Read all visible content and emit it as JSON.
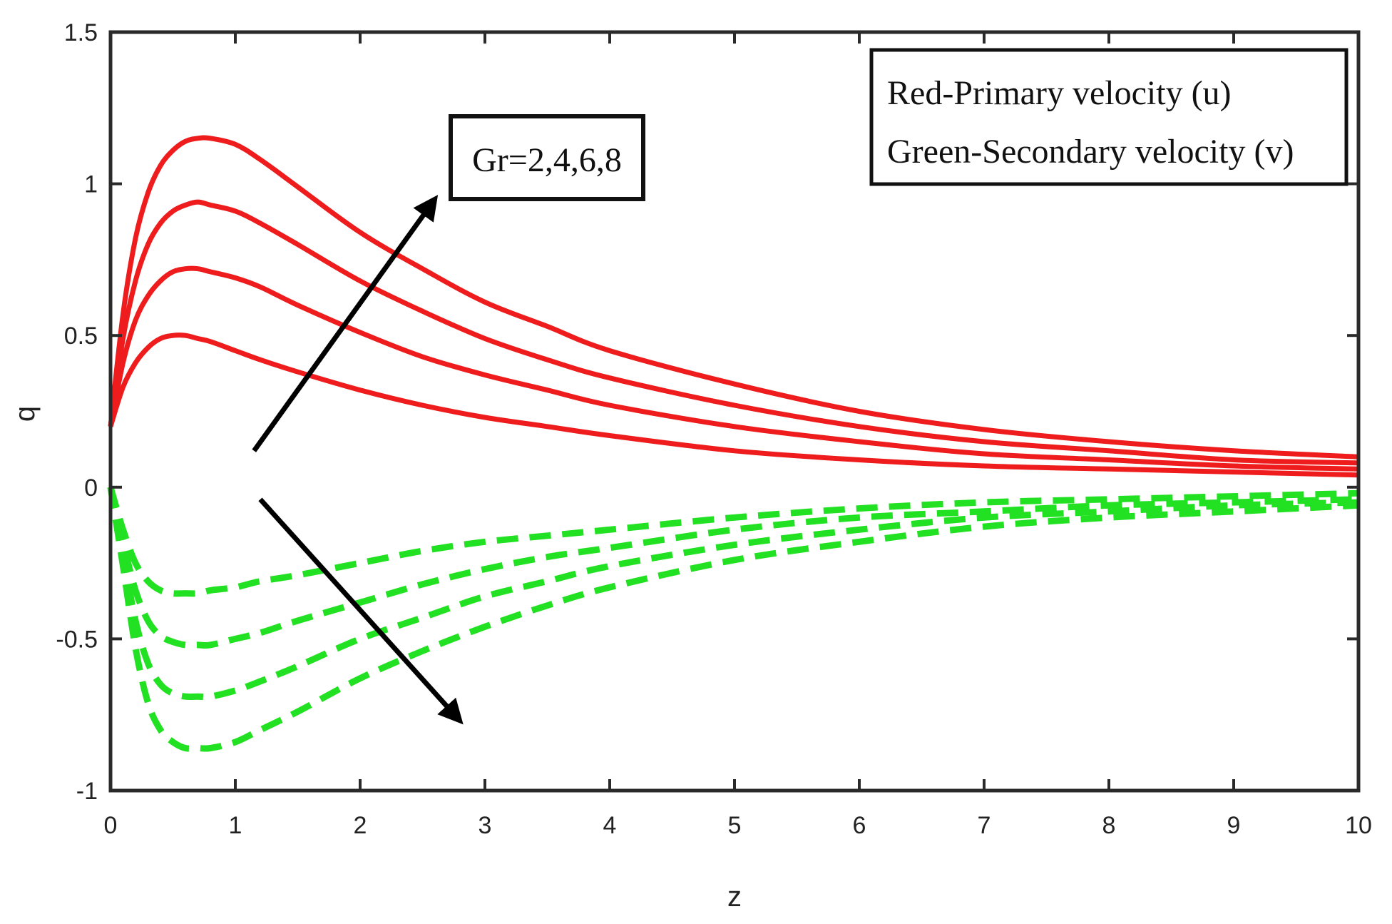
{
  "chart_data": {
    "type": "line",
    "title": "",
    "xlabel": "z",
    "ylabel": "q",
    "xlim": [
      0,
      10
    ],
    "ylim": [
      -1,
      1.5
    ],
    "x_ticks": [
      "0",
      "1",
      "2",
      "3",
      "4",
      "5",
      "6",
      "7",
      "8",
      "9",
      "10"
    ],
    "y_ticks": [
      "-1",
      "-0.5",
      "0",
      "0.5",
      "1",
      "1.5"
    ],
    "grid": false,
    "colors": {
      "primary": "#ee1c1c",
      "secondary": "#22e022",
      "arrow": "#000000"
    },
    "x": [
      0,
      0.1,
      0.2,
      0.3,
      0.4,
      0.5,
      0.6,
      0.7,
      0.8,
      1,
      1.2,
      1.5,
      2,
      2.5,
      3,
      3.5,
      4,
      5,
      6,
      7,
      8,
      9,
      10
    ],
    "series": [
      {
        "name": "u, Gr=2",
        "style": "solid",
        "values": [
          0.2,
          0.33,
          0.41,
          0.46,
          0.49,
          0.5,
          0.5,
          0.49,
          0.48,
          0.45,
          0.42,
          0.38,
          0.32,
          0.27,
          0.23,
          0.2,
          0.17,
          0.12,
          0.09,
          0.07,
          0.06,
          0.05,
          0.04
        ]
      },
      {
        "name": "u, Gr=4",
        "style": "solid",
        "values": [
          0.2,
          0.41,
          0.55,
          0.63,
          0.68,
          0.71,
          0.72,
          0.72,
          0.71,
          0.69,
          0.66,
          0.6,
          0.51,
          0.43,
          0.37,
          0.32,
          0.27,
          0.2,
          0.15,
          0.11,
          0.09,
          0.07,
          0.06
        ]
      },
      {
        "name": "u, Gr=6",
        "style": "solid",
        "values": [
          0.2,
          0.49,
          0.68,
          0.8,
          0.87,
          0.91,
          0.93,
          0.94,
          0.93,
          0.91,
          0.87,
          0.8,
          0.68,
          0.58,
          0.49,
          0.42,
          0.36,
          0.27,
          0.2,
          0.15,
          0.12,
          0.09,
          0.08
        ]
      },
      {
        "name": "u, Gr=8",
        "style": "solid",
        "values": [
          0.2,
          0.57,
          0.82,
          0.97,
          1.06,
          1.11,
          1.14,
          1.15,
          1.15,
          1.13,
          1.08,
          0.99,
          0.84,
          0.72,
          0.61,
          0.53,
          0.45,
          0.34,
          0.25,
          0.19,
          0.15,
          0.12,
          0.1
        ]
      },
      {
        "name": "v, Gr=2",
        "style": "dashed",
        "values": [
          0,
          -0.14,
          -0.25,
          -0.31,
          -0.34,
          -0.35,
          -0.35,
          -0.35,
          -0.34,
          -0.33,
          -0.31,
          -0.29,
          -0.25,
          -0.21,
          -0.18,
          -0.16,
          -0.14,
          -0.1,
          -0.07,
          -0.05,
          -0.04,
          -0.03,
          -0.02
        ]
      },
      {
        "name": "v, Gr=4",
        "style": "dashed",
        "values": [
          0,
          -0.18,
          -0.34,
          -0.44,
          -0.49,
          -0.51,
          -0.52,
          -0.52,
          -0.52,
          -0.5,
          -0.48,
          -0.44,
          -0.38,
          -0.32,
          -0.27,
          -0.23,
          -0.2,
          -0.14,
          -0.1,
          -0.08,
          -0.06,
          -0.05,
          -0.04
        ]
      },
      {
        "name": "v, Gr=6",
        "style": "dashed",
        "values": [
          0,
          -0.22,
          -0.44,
          -0.58,
          -0.65,
          -0.68,
          -0.69,
          -0.69,
          -0.69,
          -0.67,
          -0.64,
          -0.59,
          -0.5,
          -0.43,
          -0.36,
          -0.31,
          -0.26,
          -0.19,
          -0.14,
          -0.1,
          -0.08,
          -0.06,
          -0.05
        ]
      },
      {
        "name": "v, Gr=8",
        "style": "dashed",
        "values": [
          0,
          -0.26,
          -0.53,
          -0.71,
          -0.8,
          -0.84,
          -0.86,
          -0.86,
          -0.86,
          -0.84,
          -0.8,
          -0.74,
          -0.63,
          -0.54,
          -0.46,
          -0.39,
          -0.33,
          -0.24,
          -0.18,
          -0.13,
          -0.1,
          -0.08,
          -0.06
        ]
      }
    ],
    "legend": {
      "placement": "top-right",
      "lines": [
        "Red-Primary velocity (u)",
        "Green-Secondary velocity (v)"
      ]
    },
    "annotations": {
      "label": "Gr=2,4,6,8",
      "arrow_up": {
        "from": [
          1.15,
          0.12
        ],
        "to": [
          2.6,
          0.95
        ]
      },
      "arrow_down": {
        "from": [
          1.2,
          -0.04
        ],
        "to": [
          2.8,
          -0.77
        ]
      }
    }
  }
}
